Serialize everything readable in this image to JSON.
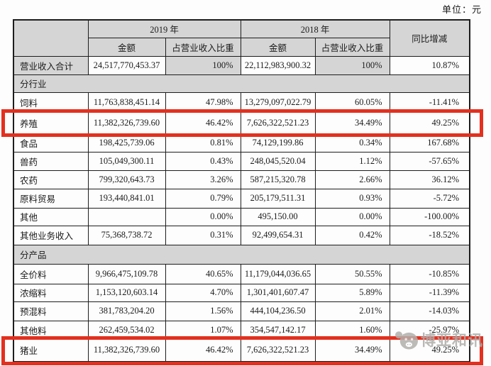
{
  "unit_label": "单位：元",
  "table": {
    "header": {
      "year_2019": "2019 年",
      "year_2018": "2018 年",
      "yoy": "同比增减",
      "amount": "金额",
      "share": "占营业收入比重"
    },
    "rows": [
      {
        "type": "total",
        "label": "营业收入合计",
        "amount_2019": "24,517,770,453.37",
        "share_2019": "100%",
        "amount_2018": "22,112,983,900.32",
        "share_2018": "100%",
        "yoy": "10.87%"
      },
      {
        "type": "section",
        "label": "分行业"
      },
      {
        "type": "data",
        "label": "饲料",
        "amount_2019": "11,763,838,451.14",
        "share_2019": "47.98%",
        "amount_2018": "13,279,097,022.79",
        "share_2018": "60.05%",
        "yoy": "-11.41%"
      },
      {
        "type": "data",
        "label": "养殖",
        "amount_2019": "11,382,326,739.60",
        "share_2019": "46.42%",
        "amount_2018": "7,626,322,521.23",
        "share_2018": "34.49%",
        "yoy": "49.25%",
        "highlight": true
      },
      {
        "type": "data",
        "label": "食品",
        "amount_2019": "198,425,739.06",
        "share_2019": "0.81%",
        "amount_2018": "74,129,199.86",
        "share_2018": "0.34%",
        "yoy": "167.68%"
      },
      {
        "type": "data",
        "label": "兽药",
        "amount_2019": "105,049,300.11",
        "share_2019": "0.43%",
        "amount_2018": "248,045,520.04",
        "share_2018": "1.12%",
        "yoy": "-57.65%"
      },
      {
        "type": "data",
        "label": "农药",
        "amount_2019": "799,320,643.73",
        "share_2019": "3.26%",
        "amount_2018": "587,215,320.78",
        "share_2018": "2.66%",
        "yoy": "36.12%"
      },
      {
        "type": "data",
        "label": "原料贸易",
        "amount_2019": "193,440,841.01",
        "share_2019": "0.79%",
        "amount_2018": "205,179,511.31",
        "share_2018": "0.93%",
        "yoy": "-5.72%"
      },
      {
        "type": "data",
        "label": "其他",
        "amount_2019": "",
        "share_2019": "0.00%",
        "amount_2018": "495,150.00",
        "share_2018": "0.00%",
        "yoy": "-100.00%"
      },
      {
        "type": "data",
        "label": "其他业务收入",
        "amount_2019": "75,368,738.72",
        "share_2019": "0.31%",
        "amount_2018": "92,499,654.31",
        "share_2018": "0.42%",
        "yoy": "-18.52%"
      },
      {
        "type": "section",
        "label": "分产品"
      },
      {
        "type": "data",
        "label": "全价料",
        "amount_2019": "9,966,475,109.78",
        "share_2019": "40.65%",
        "amount_2018": "11,179,044,036.65",
        "share_2018": "50.55%",
        "yoy": "-10.85%"
      },
      {
        "type": "data",
        "label": "浓缩料",
        "amount_2019": "1,153,120,603.14",
        "share_2019": "4.70%",
        "amount_2018": "1,301,401,607.47",
        "share_2018": "5.89%",
        "yoy": "-11.39%"
      },
      {
        "type": "data",
        "label": "预混料",
        "amount_2019": "381,783,204.20",
        "share_2019": "1.56%",
        "amount_2018": "444,104,236.50",
        "share_2018": "2.01%",
        "yoy": "-14.03%"
      },
      {
        "type": "data",
        "label": "其他料",
        "amount_2019": "262,459,534.02",
        "share_2019": "1.07%",
        "amount_2018": "354,547,142.17",
        "share_2018": "1.60%",
        "yoy": "-25.97%"
      },
      {
        "type": "data",
        "label": "猪业",
        "amount_2019": "11,382,326,739.60",
        "share_2019": "46.42%",
        "amount_2018": "7,626,322,521.23",
        "share_2018": "34.49%",
        "yoy": "49.25%",
        "highlight": true
      }
    ]
  },
  "watermark": {
    "text": "博亚和讯",
    "icon": "piglet-face-icon"
  },
  "colors": {
    "highlight_red": "#e3301f",
    "shade_gray": "#d5d5d5"
  }
}
